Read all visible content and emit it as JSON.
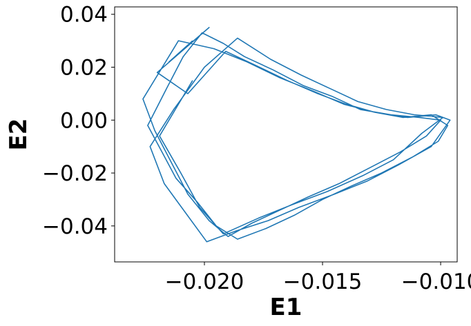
{
  "chart_data": {
    "type": "line",
    "title": "",
    "xlabel": "E1",
    "ylabel": "E2",
    "xlim": [
      -0.0238,
      -0.0093
    ],
    "ylim": [
      -0.0536,
      0.0428
    ],
    "xticks": [
      -0.02,
      -0.015,
      -0.01
    ],
    "xtick_labels": [
      "−0.020",
      "−0.015",
      "−0.010"
    ],
    "yticks": [
      0.04,
      0.02,
      0.0,
      -0.02,
      -0.04
    ],
    "ytick_labels": [
      "0.04",
      "0.02",
      "0.00",
      "−0.02",
      "−0.04"
    ],
    "grid": false,
    "legend": "none",
    "colors": {
      "series": "#1f77b4",
      "axes": "#000000",
      "background": "#ffffff"
    },
    "series": [
      {
        "color": "#1f77b4",
        "x": [
          -0.0205,
          -0.0215,
          -0.0198,
          -0.022,
          -0.0207,
          -0.0191,
          -0.0179,
          -0.0165,
          -0.0152,
          -0.014,
          -0.0128,
          -0.0116,
          -0.0104,
          -0.0097,
          -0.0101,
          -0.0112,
          -0.0125,
          -0.0138,
          -0.015,
          -0.0162,
          -0.0174,
          -0.0186,
          -0.0195,
          -0.0203,
          -0.0212,
          -0.0218,
          -0.0224,
          -0.0216,
          -0.0209,
          -0.0201,
          -0.0192,
          -0.0183,
          -0.0171,
          -0.0158,
          -0.0146,
          -0.0134,
          -0.0121,
          -0.0109,
          -0.01,
          -0.0106,
          -0.0117,
          -0.013,
          -0.0143,
          -0.0156,
          -0.0168,
          -0.018,
          -0.019,
          -0.0198,
          -0.0207,
          -0.0214,
          -0.0221,
          -0.0226,
          -0.0211,
          -0.0196,
          -0.0182,
          -0.0168,
          -0.0154,
          -0.0141,
          -0.0128,
          -0.0114,
          -0.0102,
          -0.0096,
          -0.0104,
          -0.0118,
          -0.0131,
          -0.0145,
          -0.016,
          -0.0173,
          -0.0187,
          -0.0199,
          -0.0208,
          -0.0217,
          -0.0223,
          -0.0213,
          -0.02,
          -0.0186,
          -0.0172,
          -0.0159,
          -0.0147,
          -0.0135,
          -0.0123,
          -0.0111,
          -0.0099,
          -0.0108,
          -0.012,
          -0.0133,
          -0.0148,
          -0.0163,
          -0.0177,
          -0.0192,
          -0.0202,
          -0.021,
          -0.0219,
          -0.0205
        ],
        "y": [
          0.03,
          0.022,
          0.035,
          0.018,
          0.01,
          0.026,
          0.021,
          0.015,
          0.01,
          0.006,
          0.003,
          0.001,
          0.002,
          -0.002,
          -0.008,
          -0.014,
          -0.02,
          -0.025,
          -0.03,
          -0.036,
          -0.041,
          -0.045,
          -0.04,
          -0.031,
          -0.022,
          -0.012,
          -0.002,
          0.012,
          0.024,
          0.033,
          0.029,
          0.024,
          0.019,
          0.013,
          0.009,
          0.004,
          0.002,
          0.001,
          0.0,
          -0.006,
          -0.012,
          -0.018,
          -0.024,
          -0.029,
          -0.034,
          -0.039,
          -0.044,
          -0.038,
          -0.028,
          -0.016,
          -0.004,
          0.008,
          0.03,
          0.027,
          0.022,
          0.016,
          0.011,
          0.006,
          0.003,
          0.001,
          0.002,
          0.0,
          -0.01,
          -0.017,
          -0.023,
          -0.028,
          -0.033,
          -0.038,
          -0.042,
          -0.046,
          -0.035,
          -0.024,
          -0.01,
          0.004,
          0.02,
          0.031,
          0.023,
          0.017,
          0.012,
          0.007,
          0.004,
          0.002,
          0.001,
          -0.005,
          -0.015,
          -0.021,
          -0.027,
          -0.032,
          -0.037,
          -0.043,
          -0.033,
          -0.02,
          -0.006,
          0.015
        ]
      }
    ]
  }
}
